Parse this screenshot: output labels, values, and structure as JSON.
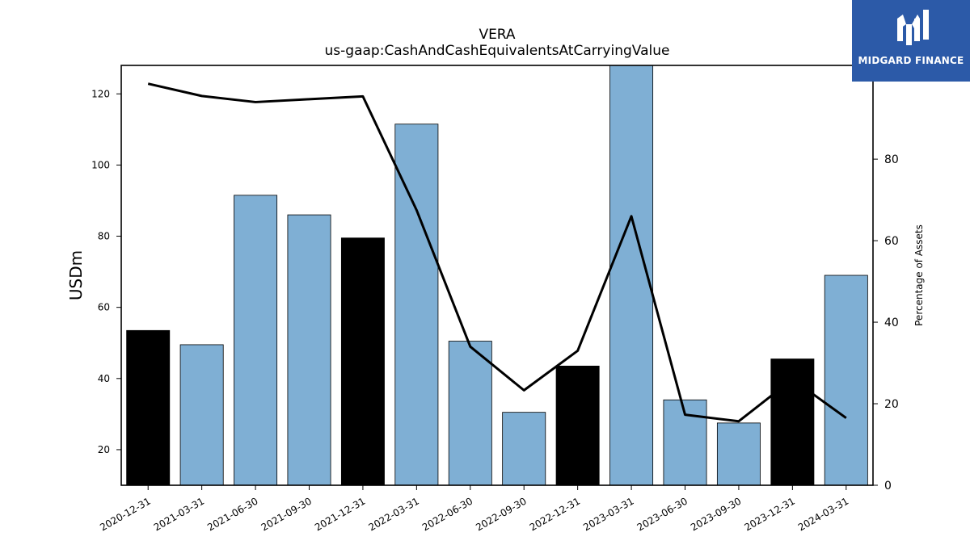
{
  "chart_data": {
    "type": "bar",
    "title": "VERA",
    "subtitle": "us-gaap:CashAndCashEquivalentsAtCarryingValue",
    "ylabel": "USDm",
    "y2label": "Percentage of Assets",
    "categories": [
      "2020-12-31",
      "2021-03-31",
      "2021-06-30",
      "2021-09-30",
      "2021-12-31",
      "2022-03-31",
      "2022-06-30",
      "2022-09-30",
      "2022-12-31",
      "2023-03-31",
      "2023-06-30",
      "2023-09-30",
      "2023-12-31",
      "2024-03-31"
    ],
    "series": [
      {
        "values": [
          53.5,
          49.5,
          91.5,
          86.0,
          79.5,
          111.5,
          50.5,
          30.5,
          43.5,
          129.0,
          34.0,
          27.5,
          45.5,
          69.0
        ]
      },
      {
        "axis": "right",
        "type": "line",
        "values": [
          98.5,
          95.5,
          94.0,
          94.7,
          95.4,
          67.5,
          34.0,
          23.3,
          33.0,
          66.0,
          17.3,
          15.7,
          26.0,
          16.5
        ]
      }
    ],
    "bar_highlight": [
      true,
      false,
      false,
      false,
      true,
      false,
      false,
      false,
      true,
      false,
      false,
      false,
      true,
      false
    ],
    "colors": {
      "bar": "#7fafd4",
      "highlight": "#000000",
      "line": "#000000",
      "edge": "#000000"
    },
    "ylim": [
      10,
      128
    ],
    "yticks": [
      20,
      40,
      60,
      80,
      100,
      120
    ],
    "y2lim": [
      0,
      103
    ],
    "y2ticks": [
      0,
      20,
      40,
      60,
      80
    ],
    "xtick_rotation": 30,
    "grid": false
  },
  "logo": {
    "name": "MIDGARD FINANCE",
    "icon": "midgard-logo-icon"
  }
}
